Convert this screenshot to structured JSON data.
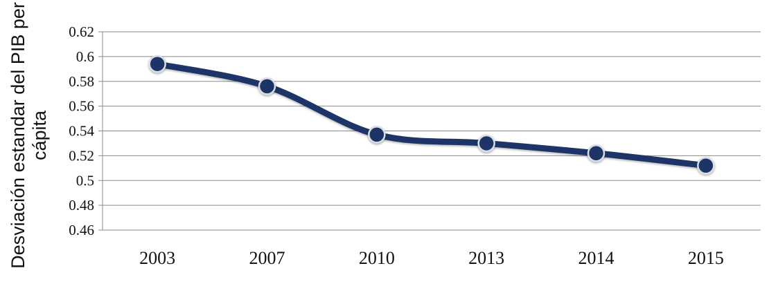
{
  "chart_data": {
    "type": "line",
    "title": "",
    "xlabel": "",
    "ylabel_lines": [
      "Desviación estandar del PIB per",
      "cápita"
    ],
    "categories": [
      "2003",
      "2007",
      "2010",
      "2013",
      "2014",
      "2015"
    ],
    "series": [
      {
        "values": [
          0.594,
          0.576,
          0.537,
          0.53,
          0.522,
          0.512
        ]
      }
    ],
    "ylim": [
      0.46,
      0.62
    ],
    "yticks": [
      "0.46",
      "0.48",
      "0.5",
      "0.52",
      "0.54",
      "0.56",
      "0.58",
      "0.6",
      "0.62"
    ],
    "grid": true,
    "legend": "none",
    "line_color": "#1f3566",
    "marker_color": "#1f3566",
    "gridline_color": "#8a8a8a"
  }
}
